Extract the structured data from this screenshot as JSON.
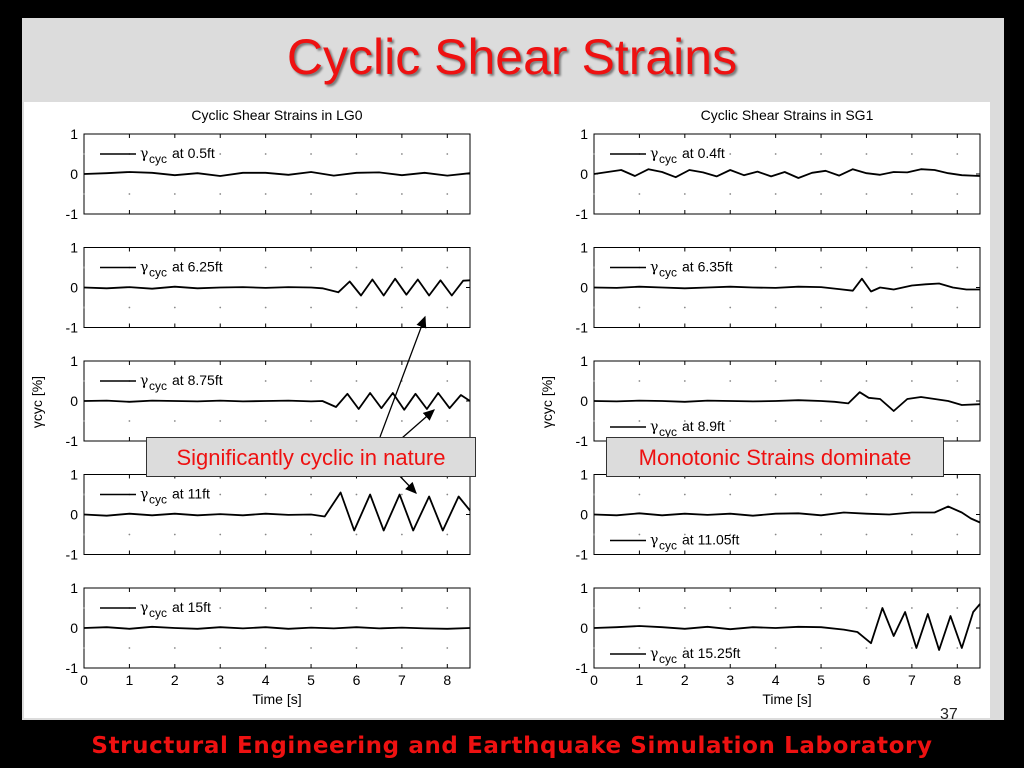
{
  "slide": {
    "title": "Cyclic Shear Strains",
    "footer": "Structural Engineering and Earthquake Simulation Laboratory",
    "page_number": "37"
  },
  "annotations": {
    "left": "Significantly cyclic in nature",
    "right": "Monotonic Strains dominate"
  },
  "colors": {
    "title": "#ee1111",
    "line": "#000000",
    "background": "#dcdcdc"
  },
  "chart_data": [
    {
      "type": "line",
      "title": "Cyclic Shear Strains in LG0",
      "xlabel": "Time [s]",
      "ylabel": "γcyc [%]",
      "xlim": [
        0,
        8.5
      ],
      "xticks": [
        "0",
        "1",
        "2",
        "3",
        "4",
        "5",
        "6",
        "7",
        "8"
      ],
      "ylim": [
        -1,
        1
      ],
      "yticks": [
        "1",
        "0",
        "-1"
      ],
      "subplots": [
        {
          "legend": "at 0.5ft",
          "legend_position": "top-left",
          "x": [
            0,
            0.5,
            1,
            1.5,
            2,
            2.5,
            3,
            3.5,
            4,
            4.5,
            5,
            5.5,
            6,
            6.5,
            7,
            7.5,
            8,
            8.5
          ],
          "y": [
            0,
            0.02,
            0.05,
            0.03,
            -0.03,
            0.02,
            -0.05,
            0.03,
            0.03,
            -0.02,
            0.05,
            -0.04,
            0.03,
            0.04,
            -0.03,
            0.03,
            -0.04,
            0.02
          ]
        },
        {
          "legend": "at 6.25ft",
          "legend_position": "top-left",
          "x": [
            0,
            0.5,
            1,
            1.5,
            2,
            2.5,
            3,
            3.5,
            4,
            4.5,
            5,
            5.25,
            5.6,
            5.85,
            6.1,
            6.35,
            6.6,
            6.85,
            7.1,
            7.35,
            7.6,
            7.85,
            8.1,
            8.35,
            8.5
          ],
          "y": [
            0,
            -0.02,
            0.01,
            -0.03,
            0.02,
            -0.02,
            0,
            0.01,
            -0.01,
            0.01,
            0,
            -0.02,
            -0.12,
            0.15,
            -0.2,
            0.2,
            -0.2,
            0.22,
            -0.18,
            0.2,
            -0.2,
            0.18,
            -0.2,
            0.17,
            0.18
          ]
        },
        {
          "legend": "at 8.75ft",
          "legend_position": "top-left",
          "x": [
            0,
            0.5,
            1,
            1.5,
            2,
            2.5,
            3,
            3.5,
            4,
            4.5,
            5,
            5.25,
            5.55,
            5.8,
            6.05,
            6.3,
            6.55,
            6.8,
            7.05,
            7.3,
            7.55,
            7.8,
            8.05,
            8.3,
            8.5
          ],
          "y": [
            0,
            0.01,
            -0.02,
            0.01,
            0,
            -0.01,
            0.01,
            -0.01,
            0,
            0.01,
            -0.01,
            0,
            -0.15,
            0.18,
            -0.2,
            0.2,
            -0.18,
            0.2,
            -0.22,
            0.18,
            -0.2,
            0.2,
            -0.18,
            0.15,
            0.0
          ]
        },
        {
          "legend": "at 11ft",
          "legend_position": "top-left",
          "x": [
            0,
            0.5,
            1,
            1.5,
            2,
            2.5,
            3,
            3.5,
            4,
            4.5,
            5,
            5.3,
            5.65,
            5.95,
            6.3,
            6.6,
            6.95,
            7.25,
            7.6,
            7.9,
            8.25,
            8.5
          ],
          "y": [
            0,
            -0.03,
            0.02,
            -0.02,
            0.02,
            -0.02,
            0.01,
            -0.02,
            0.02,
            -0.01,
            0,
            -0.05,
            0.55,
            -0.4,
            0.5,
            -0.4,
            0.5,
            -0.4,
            0.45,
            -0.4,
            0.45,
            0.1
          ]
        },
        {
          "legend": "at 15ft",
          "legend_position": "top-left",
          "x": [
            0,
            0.5,
            1,
            1.5,
            2,
            2.5,
            3,
            3.5,
            4,
            4.5,
            5,
            5.5,
            6,
            6.5,
            7,
            7.5,
            8,
            8.5
          ],
          "y": [
            0,
            0.02,
            -0.02,
            0.03,
            0,
            -0.02,
            0.02,
            -0.01,
            0.02,
            -0.02,
            0.01,
            -0.01,
            0.02,
            -0.01,
            0.01,
            -0.01,
            -0.02,
            0
          ]
        }
      ]
    },
    {
      "type": "line",
      "title": "Cyclic Shear Strains in SG1",
      "xlabel": "Time [s]",
      "ylabel": "γcyc [%]",
      "xlim": [
        0,
        8.5
      ],
      "xticks": [
        "0",
        "1",
        "2",
        "3",
        "4",
        "5",
        "6",
        "7",
        "8"
      ],
      "ylim": [
        -1,
        1
      ],
      "yticks": [
        "1",
        "0",
        "-1"
      ],
      "subplots": [
        {
          "legend": "at 0.4ft",
          "legend_position": "top-left",
          "x": [
            0,
            0.3,
            0.6,
            0.9,
            1.2,
            1.5,
            1.8,
            2.1,
            2.4,
            2.7,
            3,
            3.3,
            3.6,
            3.9,
            4.2,
            4.5,
            4.8,
            5.1,
            5.4,
            5.7,
            6,
            6.3,
            6.6,
            6.9,
            7.2,
            7.5,
            7.8,
            8.1,
            8.5
          ],
          "y": [
            0,
            0.05,
            0.1,
            -0.05,
            0.12,
            0.05,
            -0.08,
            0.1,
            0.04,
            -0.06,
            0.1,
            -0.03,
            0.06,
            -0.06,
            0.05,
            -0.1,
            0.03,
            0.08,
            -0.04,
            0.12,
            0.02,
            -0.02,
            0.05,
            0.04,
            0.12,
            0.1,
            0.02,
            -0.03,
            -0.05
          ]
        },
        {
          "legend": "at 6.35ft",
          "legend_position": "top-left",
          "x": [
            0,
            0.5,
            1,
            1.5,
            2,
            2.5,
            3,
            3.5,
            4,
            4.5,
            5,
            5.4,
            5.7,
            5.9,
            6.1,
            6.3,
            6.6,
            7,
            7.3,
            7.6,
            7.9,
            8.2,
            8.5
          ],
          "y": [
            0,
            -0.01,
            0.02,
            0,
            -0.02,
            0,
            0.02,
            0,
            -0.01,
            0.02,
            0.01,
            -0.04,
            -0.08,
            0.22,
            -0.1,
            0.0,
            -0.05,
            0.05,
            0.08,
            0.1,
            0.0,
            -0.05,
            -0.05
          ]
        },
        {
          "legend": "at 8.9ft",
          "legend_position": "bottom-left",
          "x": [
            0,
            0.5,
            1,
            1.5,
            2,
            2.5,
            3,
            3.5,
            4,
            4.5,
            5,
            5.3,
            5.6,
            5.85,
            6.05,
            6.3,
            6.6,
            6.9,
            7.2,
            7.5,
            7.8,
            8.1,
            8.5
          ],
          "y": [
            0,
            -0.01,
            0.01,
            0,
            -0.02,
            0.01,
            0,
            -0.01,
            0,
            0.02,
            0,
            -0.02,
            -0.06,
            0.22,
            0.08,
            0.05,
            -0.25,
            0.05,
            0.1,
            0.05,
            0.0,
            -0.1,
            -0.08
          ]
        },
        {
          "legend": "at 11.05ft",
          "legend_position": "bottom-left",
          "x": [
            0,
            0.5,
            1,
            1.5,
            2,
            2.5,
            3,
            3.5,
            4,
            4.5,
            5,
            5.5,
            6,
            6.5,
            7,
            7.5,
            7.8,
            8.1,
            8.3,
            8.5
          ],
          "y": [
            0,
            -0.02,
            0.03,
            -0.02,
            0.02,
            -0.01,
            0.02,
            -0.03,
            0.02,
            0.03,
            -0.02,
            0.05,
            0.02,
            0.0,
            0.05,
            0.05,
            0.2,
            0.05,
            -0.1,
            -0.2
          ]
        },
        {
          "legend": "at 15.25ft",
          "legend_position": "bottom-left",
          "x": [
            0,
            0.5,
            1,
            1.5,
            2,
            2.5,
            3,
            3.5,
            4,
            4.5,
            5,
            5.5,
            5.8,
            6.1,
            6.35,
            6.6,
            6.85,
            7.1,
            7.35,
            7.6,
            7.85,
            8.1,
            8.35,
            8.5
          ],
          "y": [
            0,
            0.02,
            0.05,
            0.02,
            -0.02,
            0.03,
            -0.03,
            0.02,
            0.0,
            0.03,
            0.02,
            -0.04,
            -0.1,
            -0.38,
            0.5,
            -0.2,
            0.4,
            -0.5,
            0.35,
            -0.55,
            0.3,
            -0.5,
            0.4,
            0.6
          ]
        }
      ]
    }
  ]
}
